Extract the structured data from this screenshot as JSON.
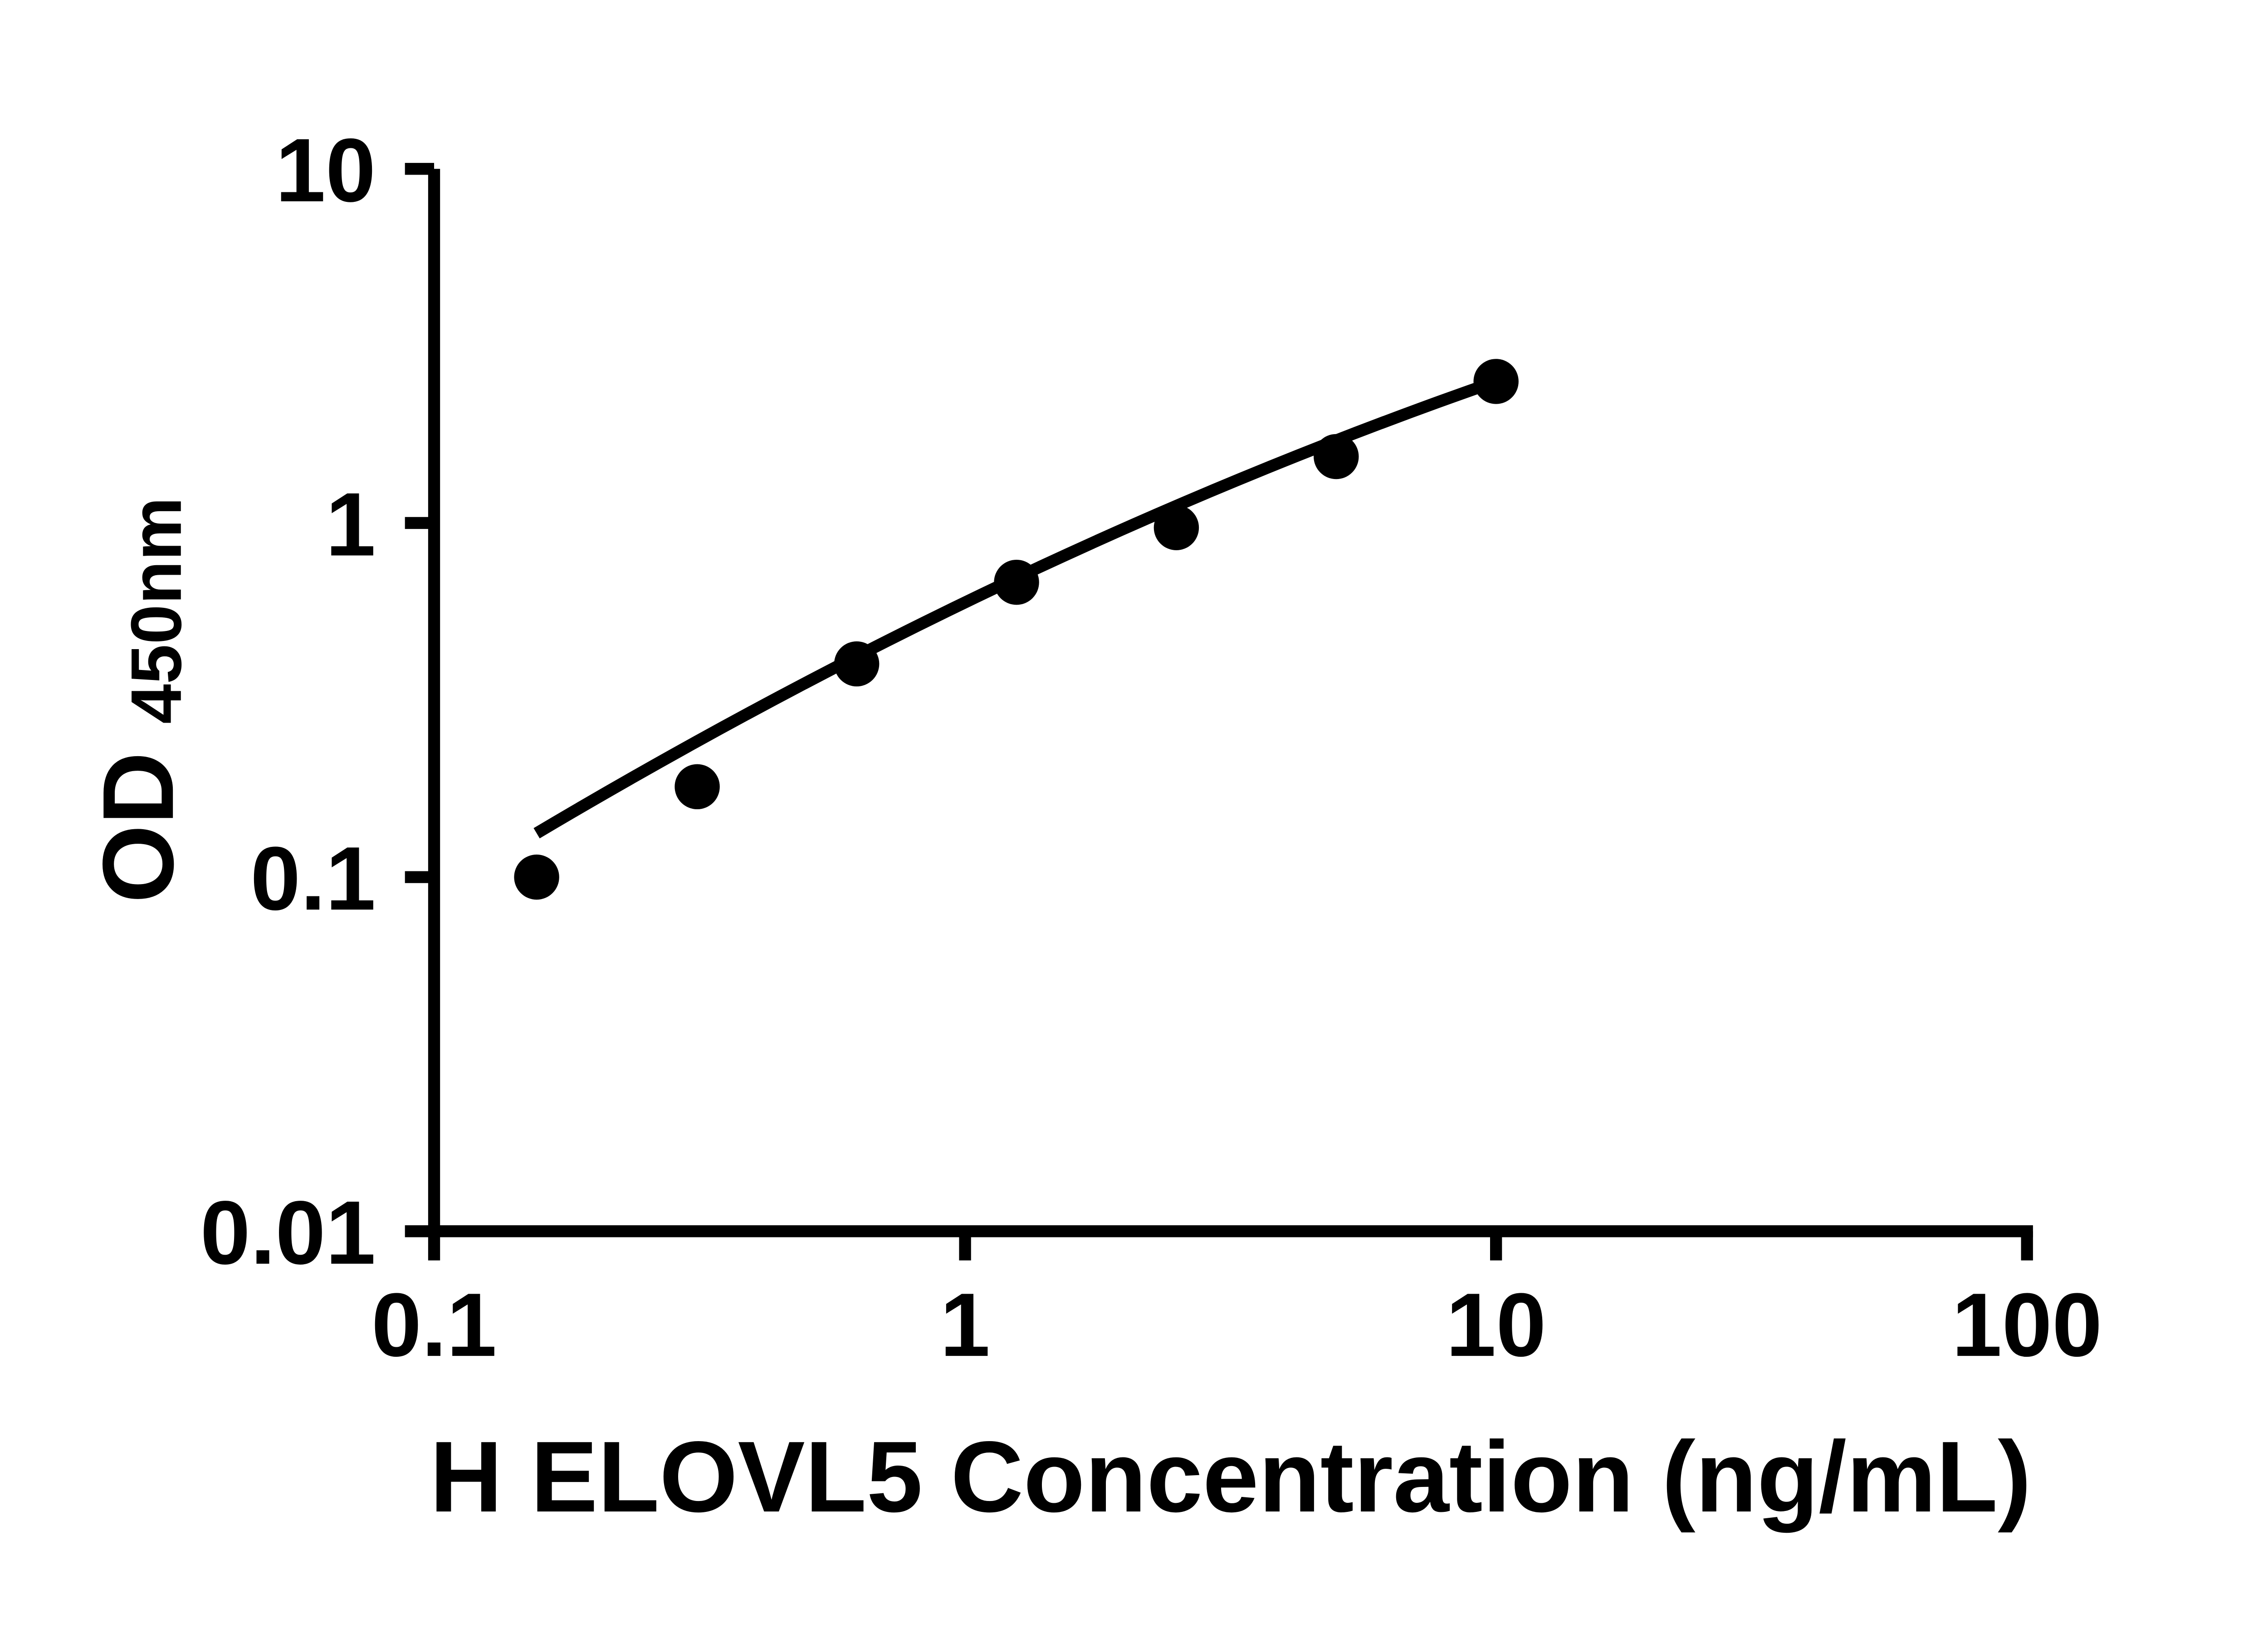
{
  "figure": {
    "background_color": "#ffffff",
    "ink_color": "#000000"
  },
  "chart_data": {
    "type": "scatter",
    "title": "",
    "xlabel": "H ELOVL5 Concentration (ng/mL)",
    "ylabel_main": "OD",
    "ylabel_subscript": "450nm",
    "x_scale": "log",
    "y_scale": "log",
    "xlim": [
      0.1,
      100
    ],
    "ylim": [
      0.01,
      10
    ],
    "x_ticks": [
      0.1,
      1,
      10,
      100
    ],
    "x_tick_labels": [
      "0.1",
      "1",
      "10",
      "100"
    ],
    "y_ticks": [
      10,
      1,
      0.1,
      0.01
    ],
    "y_tick_labels": [
      "10",
      "1",
      "0.1",
      "0.01"
    ],
    "grid": "off",
    "legend": "none",
    "marker": "filled-black-circle",
    "series": [
      {
        "name": "standard-curve-points",
        "points": [
          {
            "x": 0.156,
            "y": 0.1
          },
          {
            "x": 0.313,
            "y": 0.18
          },
          {
            "x": 0.625,
            "y": 0.4
          },
          {
            "x": 1.25,
            "y": 0.68
          },
          {
            "x": 2.5,
            "y": 0.97
          },
          {
            "x": 5,
            "y": 1.54
          },
          {
            "x": 10,
            "y": 2.51
          }
        ]
      }
    ],
    "trend_line": {
      "shape": "slightly-curved-fit",
      "start": {
        "x": 0.156,
        "y": 0.133
      },
      "mid": {
        "x": 1.25,
        "y": 0.7
      },
      "end": {
        "x": 10,
        "y": 2.51
      }
    }
  }
}
